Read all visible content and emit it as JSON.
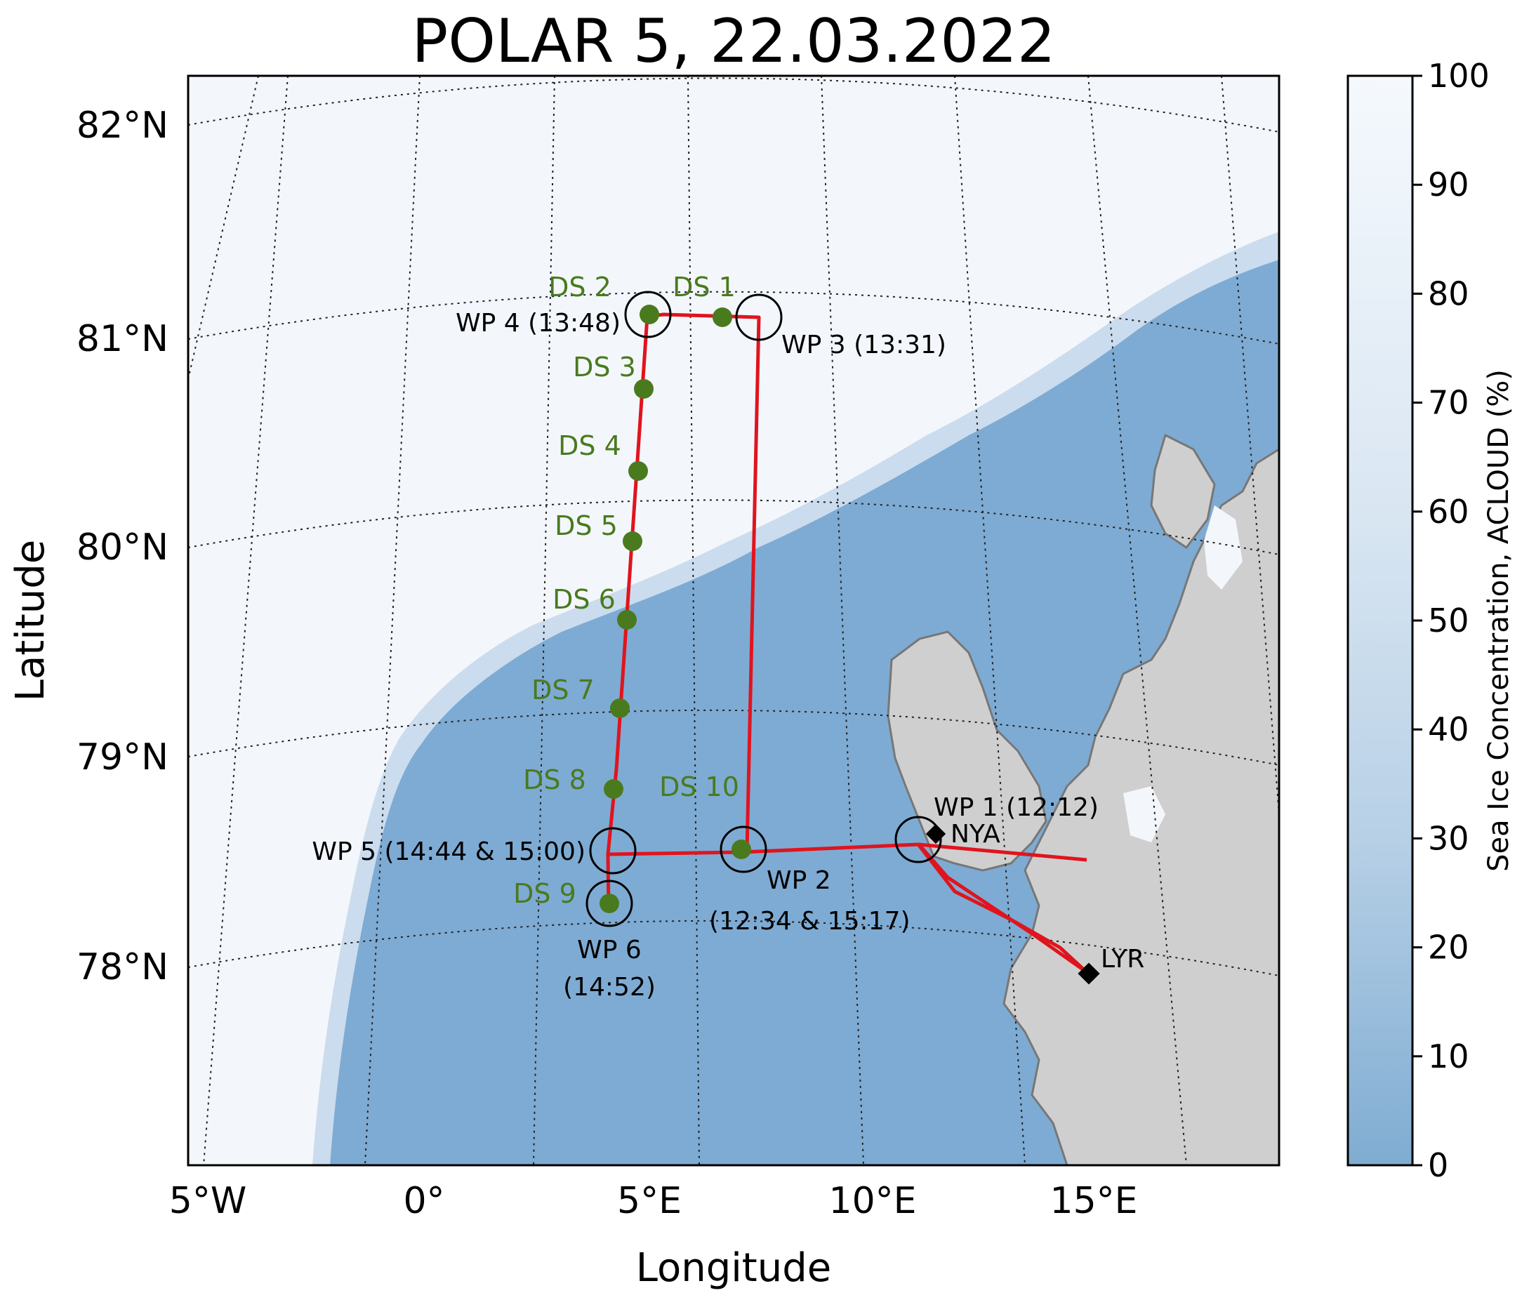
{
  "title": "POLAR 5, 22.03.2022",
  "axes": {
    "xlabel": "Longitude",
    "ylabel": "Latitude",
    "x_ticks": [
      "5°W",
      "0°",
      "5°E",
      "10°E",
      "15°E"
    ],
    "y_ticks": [
      "82°N",
      "81°N",
      "80°N",
      "79°N",
      "78°N"
    ]
  },
  "colorbar": {
    "label": "Sea Ice Concentration, ACLOUD (%)",
    "ticks": [
      "100",
      "90",
      "80",
      "70",
      "60",
      "50",
      "40",
      "30",
      "20",
      "10",
      "0"
    ],
    "range": [
      0,
      100
    ],
    "color_low": "#7facd2",
    "color_high": "#f5f9fd"
  },
  "colors": {
    "open_water": "#7eabd3",
    "sea_ice": "#f3f7fc",
    "land": "#cfcfcf",
    "track": "#e0141e",
    "dropsonde": "#4a7a1e",
    "station": "#000000"
  },
  "dropsondes": [
    {
      "id": "DS 1"
    },
    {
      "id": "DS 2"
    },
    {
      "id": "DS 3"
    },
    {
      "id": "DS 4"
    },
    {
      "id": "DS 5"
    },
    {
      "id": "DS 6"
    },
    {
      "id": "DS 7"
    },
    {
      "id": "DS 8"
    },
    {
      "id": "DS 9"
    },
    {
      "id": "DS 10"
    }
  ],
  "waypoints": [
    {
      "id": "WP 1 (12:12)"
    },
    {
      "id": "WP 2",
      "time": "(12:34 & 15:17)"
    },
    {
      "id": "WP 3 (13:31)"
    },
    {
      "id": "WP 4 (13:48)"
    },
    {
      "id": "WP 5 (14:44 & 15:00)"
    },
    {
      "id": "WP 6",
      "time": "(14:52)"
    }
  ],
  "stations": [
    {
      "id": "NYA"
    },
    {
      "id": "LYR"
    }
  ]
}
